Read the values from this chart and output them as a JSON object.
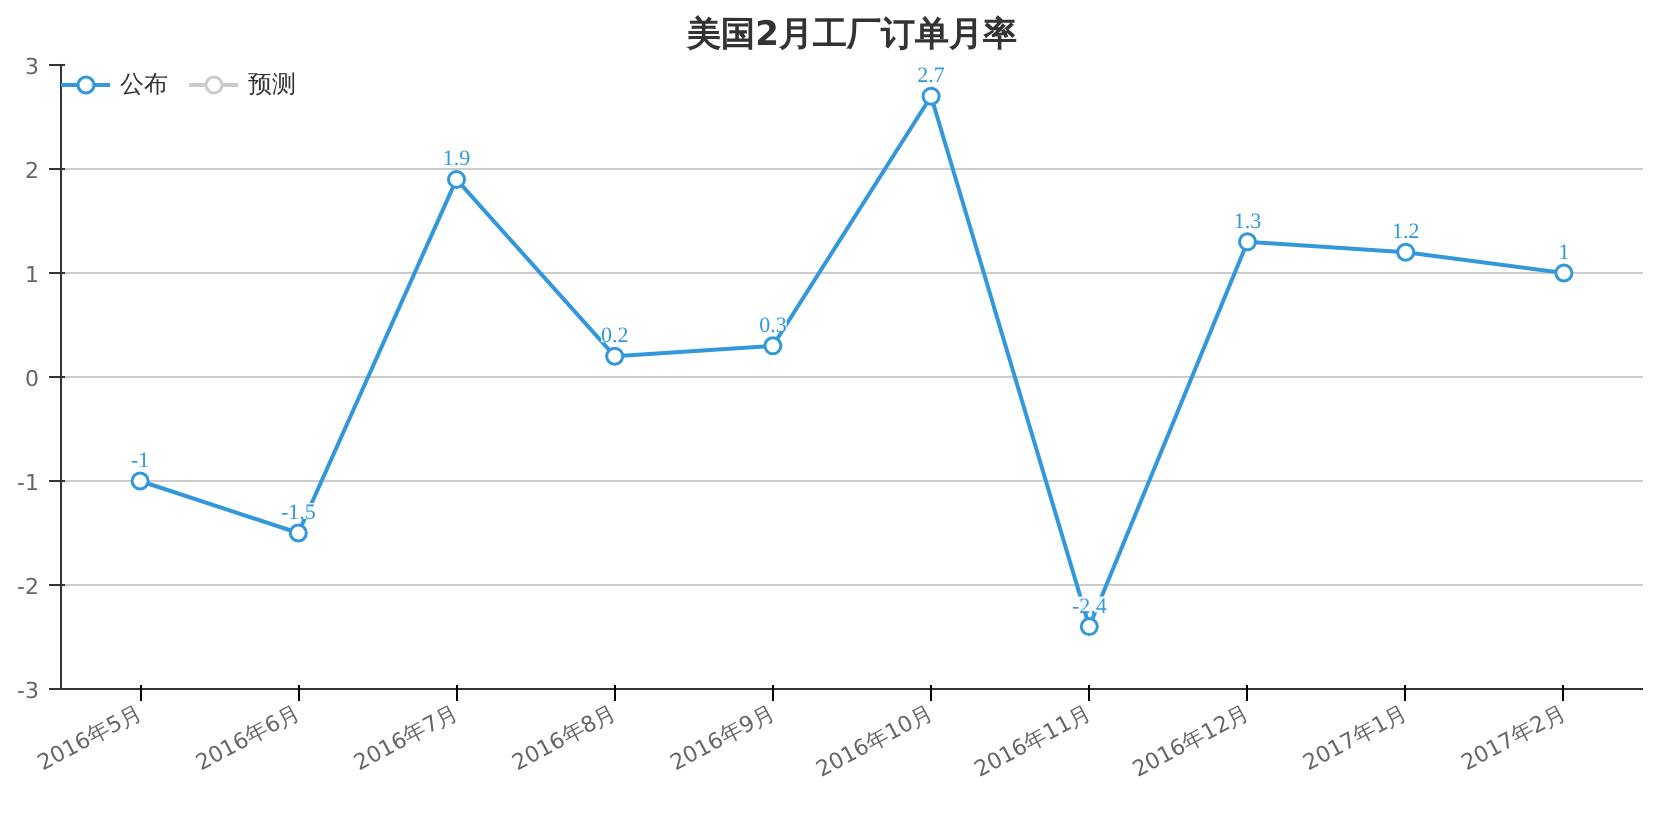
{
  "chart_data": {
    "type": "line",
    "title": "美国2月工厂订单月率",
    "categories": [
      "2016年5月",
      "2016年6月",
      "2016年7月",
      "2016年8月",
      "2016年9月",
      "2016年10月",
      "2016年11月",
      "2016年12月",
      "2017年1月",
      "2017年2月"
    ],
    "series": [
      {
        "name": "公布",
        "color": "#3398db",
        "values": [
          -1,
          -1.5,
          1.9,
          0.2,
          0.3,
          2.7,
          -2.4,
          1.3,
          1.2,
          1
        ]
      },
      {
        "name": "预测",
        "color": "#cccccc",
        "values": [
          null,
          null,
          null,
          null,
          null,
          null,
          null,
          null,
          null,
          null
        ]
      }
    ],
    "ylim": [
      -3,
      3
    ],
    "yticks": [
      -3,
      -2,
      -1,
      0,
      1,
      2,
      3
    ],
    "grid": "y",
    "legend": "top left",
    "marker": "circle",
    "line_style": "solid",
    "data_labels": true
  }
}
